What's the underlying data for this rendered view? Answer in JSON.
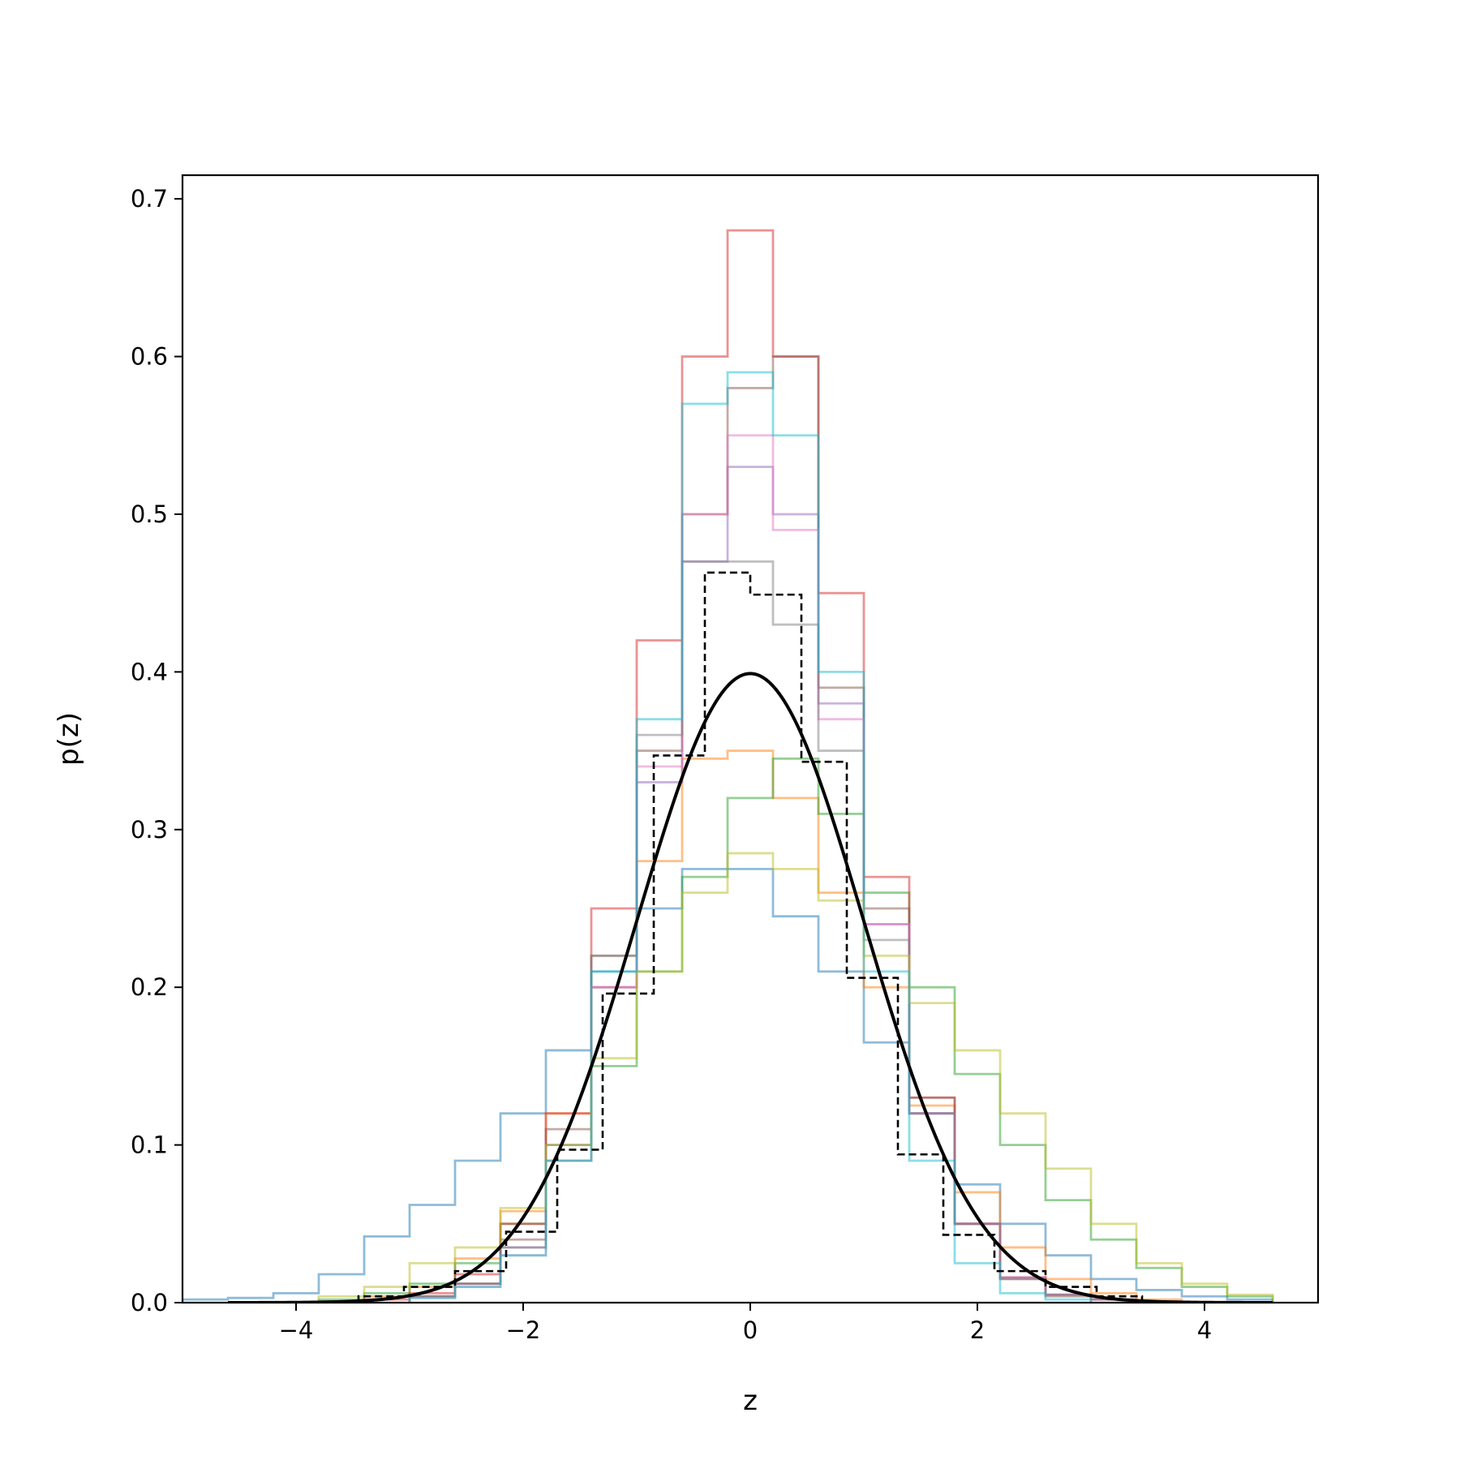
{
  "chart_data": {
    "type": "histogram",
    "title": "",
    "xlabel": "z",
    "ylabel": "p(z)",
    "xlim": [
      -5,
      5
    ],
    "ylim": [
      0,
      0.715
    ],
    "x_ticks": [
      -4,
      -2,
      0,
      2,
      4
    ],
    "x_tick_labels": [
      "−4",
      "−2",
      "0",
      "2",
      "4"
    ],
    "y_ticks": [
      0.0,
      0.1,
      0.2,
      0.3,
      0.4,
      0.5,
      0.6,
      0.7
    ],
    "y_tick_labels": [
      "0.0",
      "0.1",
      "0.2",
      "0.3",
      "0.4",
      "0.5",
      "0.6",
      "0.7"
    ],
    "grid": false,
    "legend": false,
    "series": [
      {
        "color": "#1f77b4",
        "style": "step",
        "bin_edges": [
          -5.0,
          -4.6,
          -4.2,
          -3.8,
          -3.4,
          -3.0,
          -2.6,
          -2.2,
          -1.8,
          -1.4,
          -1.0,
          -0.6,
          -0.2,
          0.2,
          0.6,
          1.0,
          1.4,
          1.8,
          2.2,
          2.6,
          3.0,
          3.4,
          3.8,
          4.2,
          4.6
        ],
        "values": [
          0.002,
          0.003,
          0.006,
          0.018,
          0.042,
          0.062,
          0.09,
          0.12,
          0.16,
          0.21,
          0.25,
          0.275,
          0.275,
          0.245,
          0.21,
          0.165,
          0.12,
          0.075,
          0.05,
          0.03,
          0.015,
          0.008,
          0.004,
          0.002
        ]
      },
      {
        "color": "#ff7f0e",
        "style": "step",
        "bin_edges": [
          -3.4,
          -3.0,
          -2.6,
          -2.2,
          -1.8,
          -1.4,
          -1.0,
          -0.6,
          -0.2,
          0.2,
          0.6,
          1.0,
          1.4,
          1.8,
          2.2,
          2.6,
          3.0,
          3.4,
          3.8
        ],
        "values": [
          0.004,
          0.01,
          0.028,
          0.058,
          0.12,
          0.2,
          0.28,
          0.345,
          0.35,
          0.32,
          0.26,
          0.2,
          0.125,
          0.07,
          0.035,
          0.015,
          0.006,
          0.002
        ]
      },
      {
        "color": "#2ca02c",
        "style": "step",
        "bin_edges": [
          -3.8,
          -3.4,
          -3.0,
          -2.6,
          -2.2,
          -1.8,
          -1.4,
          -1.0,
          -0.6,
          -0.2,
          0.2,
          0.6,
          1.0,
          1.4,
          1.8,
          2.2,
          2.6,
          3.0,
          3.4,
          3.8,
          4.2,
          4.6
        ],
        "values": [
          0.002,
          0.006,
          0.012,
          0.025,
          0.05,
          0.09,
          0.15,
          0.21,
          0.27,
          0.32,
          0.345,
          0.31,
          0.26,
          0.2,
          0.145,
          0.1,
          0.065,
          0.04,
          0.022,
          0.01,
          0.004
        ]
      },
      {
        "color": "#d62728",
        "style": "step",
        "bin_edges": [
          -3.4,
          -3.0,
          -2.6,
          -2.2,
          -1.8,
          -1.4,
          -1.0,
          -0.6,
          -0.2,
          0.2,
          0.6,
          1.0,
          1.4,
          1.8,
          2.2,
          2.6,
          3.0,
          3.4
        ],
        "values": [
          0.002,
          0.006,
          0.018,
          0.05,
          0.12,
          0.25,
          0.42,
          0.6,
          0.68,
          0.6,
          0.45,
          0.27,
          0.13,
          0.05,
          0.016,
          0.005,
          0.002
        ]
      },
      {
        "color": "#9467bd",
        "style": "step",
        "bin_edges": [
          -3.0,
          -2.6,
          -2.2,
          -1.8,
          -1.4,
          -1.0,
          -0.6,
          -0.2,
          0.2,
          0.6,
          1.0,
          1.4,
          1.8,
          2.2,
          2.6,
          3.0,
          3.4
        ],
        "values": [
          0.004,
          0.012,
          0.035,
          0.1,
          0.2,
          0.33,
          0.47,
          0.53,
          0.5,
          0.38,
          0.24,
          0.12,
          0.05,
          0.016,
          0.005,
          0.002
        ]
      },
      {
        "color": "#8c564b",
        "style": "step",
        "bin_edges": [
          -3.0,
          -2.6,
          -2.2,
          -1.8,
          -1.4,
          -1.0,
          -0.6,
          -0.2,
          0.2,
          0.6,
          1.0,
          1.4,
          1.8,
          2.2,
          2.6,
          3.0
        ],
        "values": [
          0.004,
          0.012,
          0.04,
          0.11,
          0.22,
          0.35,
          0.5,
          0.58,
          0.6,
          0.39,
          0.25,
          0.13,
          0.05,
          0.015,
          0.004
        ]
      },
      {
        "color": "#e377c2",
        "style": "step",
        "bin_edges": [
          -3.0,
          -2.6,
          -2.2,
          -1.8,
          -1.4,
          -1.0,
          -0.6,
          -0.2,
          0.2,
          0.6,
          1.0,
          1.4,
          1.8,
          2.2,
          2.6,
          3.0,
          3.4
        ],
        "values": [
          0.003,
          0.01,
          0.03,
          0.09,
          0.2,
          0.34,
          0.5,
          0.55,
          0.49,
          0.37,
          0.24,
          0.12,
          0.05,
          0.016,
          0.005,
          0.002
        ]
      },
      {
        "color": "#7f7f7f",
        "style": "step",
        "bin_edges": [
          -3.0,
          -2.6,
          -2.2,
          -1.8,
          -1.4,
          -1.0,
          -0.6,
          -0.2,
          0.2,
          0.6,
          1.0,
          1.4,
          1.8,
          2.2,
          2.6,
          3.0,
          3.4
        ],
        "values": [
          0.004,
          0.012,
          0.035,
          0.1,
          0.22,
          0.36,
          0.47,
          0.47,
          0.43,
          0.35,
          0.23,
          0.12,
          0.05,
          0.015,
          0.005,
          0.002
        ]
      },
      {
        "color": "#bcbd22",
        "style": "step",
        "bin_edges": [
          -3.8,
          -3.4,
          -3.0,
          -2.6,
          -2.2,
          -1.8,
          -1.4,
          -1.0,
          -0.6,
          -0.2,
          0.2,
          0.6,
          1.0,
          1.4,
          1.8,
          2.2,
          2.6,
          3.0,
          3.4,
          3.8,
          4.2,
          4.6
        ],
        "values": [
          0.004,
          0.01,
          0.025,
          0.035,
          0.06,
          0.1,
          0.155,
          0.21,
          0.26,
          0.285,
          0.275,
          0.255,
          0.22,
          0.19,
          0.16,
          0.12,
          0.085,
          0.05,
          0.025,
          0.012,
          0.005
        ]
      },
      {
        "color": "#17becf",
        "style": "step",
        "bin_edges": [
          -3.0,
          -2.6,
          -2.2,
          -1.8,
          -1.4,
          -1.0,
          -0.6,
          -0.2,
          0.2,
          0.6,
          1.0,
          1.4,
          1.8,
          2.2,
          2.6,
          3.0
        ],
        "values": [
          0.003,
          0.01,
          0.03,
          0.09,
          0.21,
          0.37,
          0.57,
          0.59,
          0.55,
          0.4,
          0.21,
          0.09,
          0.025,
          0.006,
          0.002
        ]
      },
      {
        "color": "#000000",
        "style": "dashed-step",
        "bin_edges": [
          -3.45,
          -3.05,
          -2.6,
          -2.15,
          -1.7,
          -1.3,
          -0.85,
          -0.4,
          0.0,
          0.45,
          0.85,
          1.3,
          1.7,
          2.15,
          2.6,
          3.05,
          3.45
        ],
        "values": [
          0.004,
          0.01,
          0.02,
          0.045,
          0.097,
          0.196,
          0.347,
          0.463,
          0.449,
          0.343,
          0.206,
          0.094,
          0.043,
          0.02,
          0.01,
          0.004
        ]
      },
      {
        "color": "#000000",
        "style": "line",
        "label": "",
        "function": "standard normal pdf",
        "x_range": [
          -4.6,
          4.6
        ]
      }
    ]
  }
}
